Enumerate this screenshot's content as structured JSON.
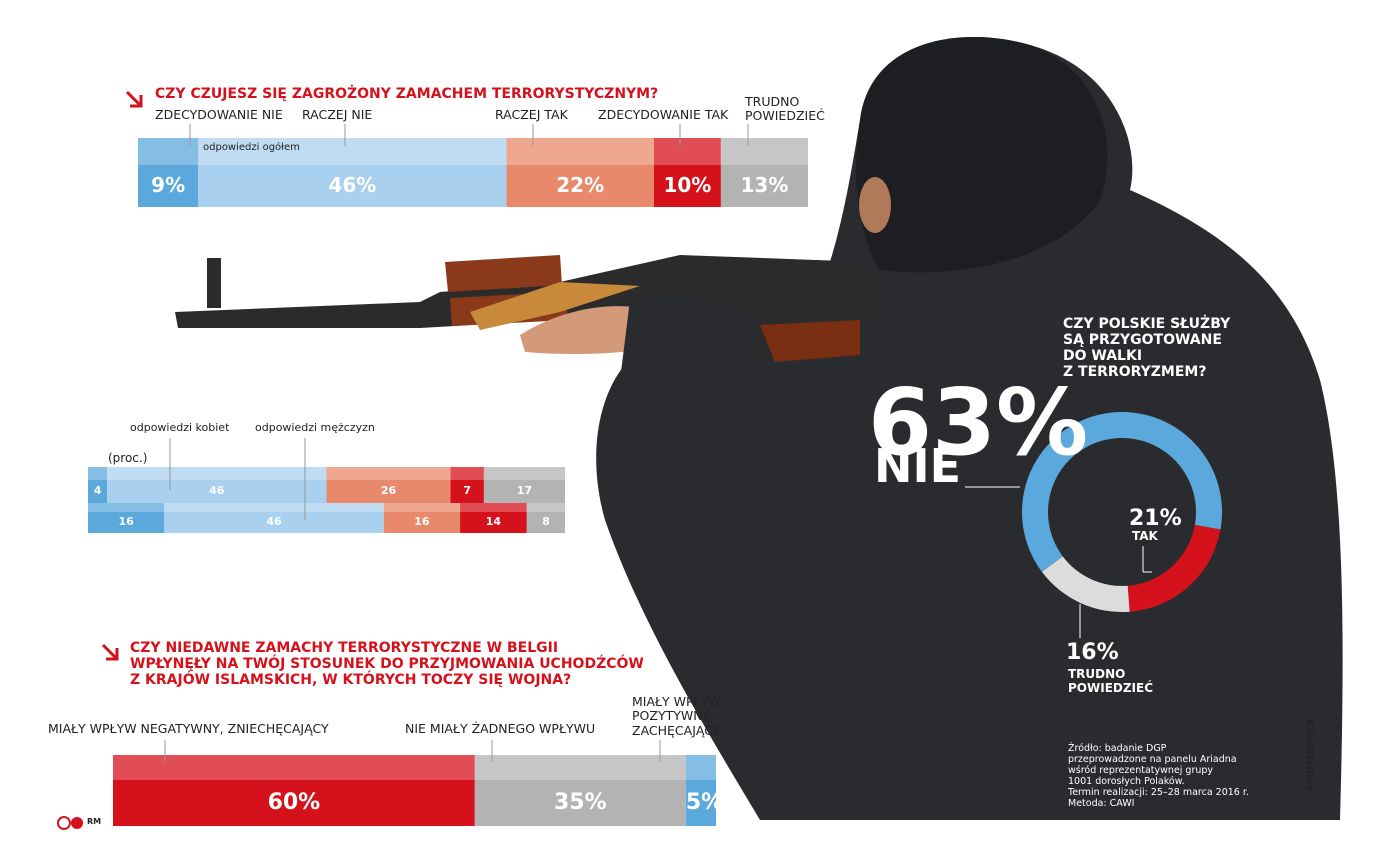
{
  "chart_data": [
    {
      "type": "stacked-bar",
      "title": "CZY CZUJESZ SIĘ ZAGROŻONY ZAMACHEM TERRORYSTYCZNYM?",
      "annotation": "odpowiedzi ogółem",
      "categories": [
        "ZDECYDOWANIE NIE",
        "RACZEJ NIE",
        "RACZEJ TAK",
        "ZDECYDOWANIE TAK",
        "TRUDNO\nPOWIEDZIEĆ"
      ],
      "colors": [
        "#5ba8dc",
        "#a9d0ee",
        "#e9896c",
        "#d5121b",
        "#b3b3b3"
      ],
      "values": [
        9,
        46,
        22,
        10,
        13
      ],
      "value_labels": [
        "9%",
        "46%",
        "22%",
        "10%",
        "13%"
      ]
    },
    {
      "type": "stacked-bar-groups",
      "unit_note": "(proc.)",
      "colors": [
        "#5ba8dc",
        "#a9d0ee",
        "#e9896c",
        "#d5121b",
        "#b3b3b3"
      ],
      "series": [
        {
          "name": "odpowiedzi kobiet",
          "values": [
            4,
            46,
            26,
            7,
            17
          ]
        },
        {
          "name": "odpowiedzi mężczyzn",
          "values": [
            16,
            46,
            16,
            14,
            8
          ]
        }
      ]
    },
    {
      "type": "donut",
      "title": "CZY POLSKIE SŁUŻBY\nSĄ PRZYGOTOWANE\nDO WALKI\nZ TERRORYZMEM?",
      "categories": [
        "TAK",
        "TRUDNO\nPOWIEDZIEĆ",
        "NIE"
      ],
      "colors": [
        "#d5121b",
        "#dcdcdc",
        "#5ba8dc"
      ],
      "values": [
        21,
        16,
        63
      ],
      "value_labels": [
        "21%",
        "16%",
        "63%"
      ]
    },
    {
      "type": "stacked-bar",
      "title": "CZY NIEDAWNE ZAMACHY TERRORYSTYCZNE W BELGII\nWPŁYNĘŁY NA TWÓJ STOSUNEK DO PRZYJMOWANIA UCHODŹCÓW\nZ KRAJÓW ISLAMSKICH, W KTÓRYCH TOCZY SIĘ WOJNA?",
      "categories": [
        "MIAŁY WPŁYW NEGATYWNY, ZNIECHĘCAJĄCY",
        "NIE MIAŁY ŻADNEGO WPŁYWU",
        "MIAŁY WPŁYW\nPOZYTYWNY,\nZACHĘCAJĄCY"
      ],
      "colors": [
        "#d5121b",
        "#b3b3b3",
        "#5ba8dc"
      ],
      "values": [
        60,
        35,
        5
      ],
      "value_labels": [
        "60%",
        "35%",
        "5%"
      ]
    }
  ],
  "source": "Źródło: badanie DGP\nprzeprowadzone na panelu Ariadna\nwśród reprezentatywnej grupy\n1001 dorosłych Polaków.\nTermin realizacji: 25–28 marca 2016 r.\nMetoda: CAWI",
  "credit": "SHUTTERSTOCK",
  "author": "RM"
}
